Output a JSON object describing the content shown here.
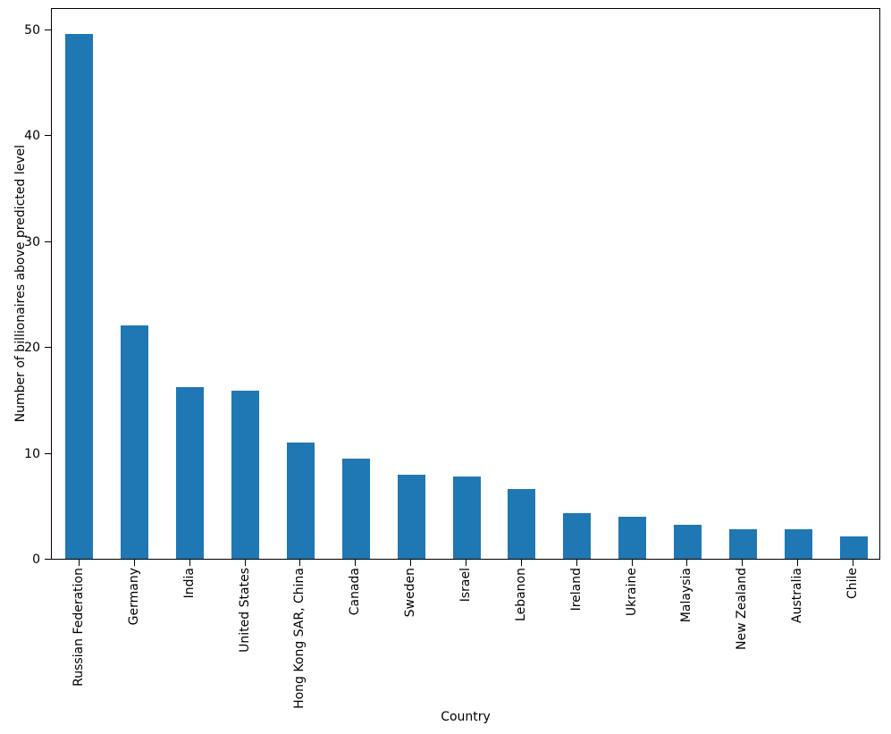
{
  "figure": {
    "background": "#ffffff",
    "axis_color": "#000000",
    "text_color": "#000000"
  },
  "chart_data": {
    "type": "bar",
    "title": "",
    "xlabel": "Country",
    "ylabel": "Number of billionaires above predicted level",
    "categories": [
      "Russian Federation",
      "Germany",
      "India",
      "United States",
      "Hong Kong SAR, China",
      "Canada",
      "Sweden",
      "Israel",
      "Lebanon",
      "Ireland",
      "Ukraine",
      "Malaysia",
      "New Zealand",
      "Australia",
      "Chile"
    ],
    "values": [
      49.6,
      22.0,
      16.2,
      15.9,
      11.0,
      9.5,
      7.9,
      7.8,
      6.6,
      4.3,
      4.0,
      3.2,
      2.8,
      2.75,
      2.1
    ],
    "yticks": [
      0,
      10,
      20,
      30,
      40,
      50
    ],
    "ylim": [
      0,
      52.1
    ],
    "bar_color": "#1f77b4",
    "bar_width_ratio": 0.5,
    "grid": false,
    "legend": false
  }
}
